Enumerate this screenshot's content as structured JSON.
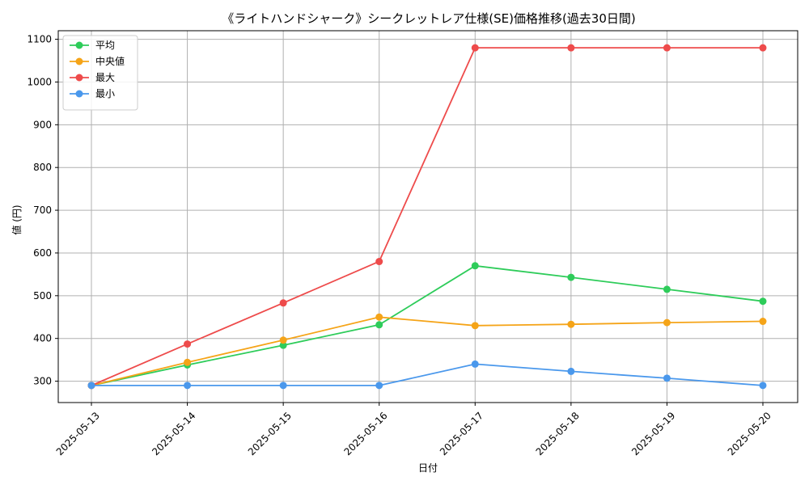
{
  "chart_data": {
    "type": "line",
    "title": "《ライトハンドシャーク》シークレットレア仕様(SE)価格推移(過去30日間)",
    "xlabel": "日付",
    "ylabel": "値 (円)",
    "categories": [
      "2025-05-13",
      "2025-05-14",
      "2025-05-15",
      "2025-05-16",
      "2025-05-17",
      "2025-05-18",
      "2025-05-19",
      "2025-05-20"
    ],
    "ylim": [
      250,
      1120
    ],
    "yticks": [
      300,
      400,
      500,
      600,
      700,
      800,
      900,
      1000,
      1100
    ],
    "grid": true,
    "legend_position": "top-left",
    "series": [
      {
        "name": "平均",
        "color": "#2ecc5a",
        "values": [
          290,
          338,
          384,
          432,
          570,
          543,
          515,
          487
        ]
      },
      {
        "name": "中央値",
        "color": "#f5a418",
        "values": [
          290,
          344,
          396,
          450,
          430,
          433,
          437,
          440
        ]
      },
      {
        "name": "最大",
        "color": "#ee4b4b",
        "values": [
          290,
          387,
          483,
          580,
          1080,
          1080,
          1080,
          1080
        ]
      },
      {
        "name": "最小",
        "color": "#4a98ec",
        "values": [
          290,
          290,
          290,
          290,
          340,
          323,
          307,
          290
        ]
      }
    ]
  }
}
